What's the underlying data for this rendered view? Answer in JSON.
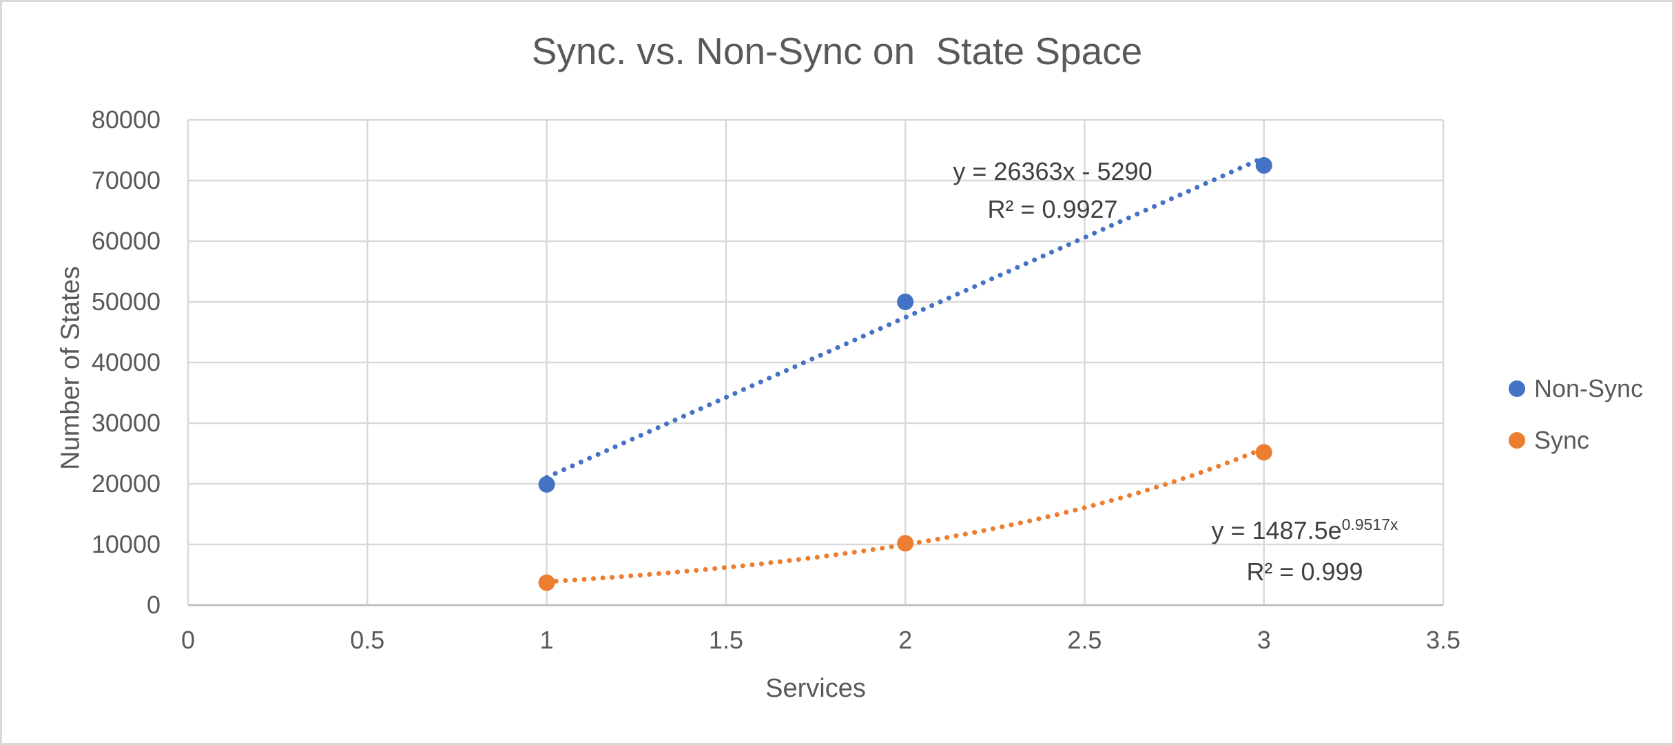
{
  "colors": {
    "accent_blue": "#4472C4",
    "accent_orange": "#ED7D31",
    "gridline": "#D9D9D9",
    "axis_line": "#BFBFBF",
    "text": "#595959",
    "equation_text": "#404040",
    "background": "#FFFFFF",
    "frame_border": "#D9D9D9"
  },
  "chart_data": {
    "type": "scatter",
    "title": "Sync. vs. Non-Sync on  State Space",
    "xlabel": "Services",
    "ylabel": "Number of States",
    "xlim": [
      0,
      3.5
    ],
    "ylim": [
      0,
      80000
    ],
    "xticks": [
      0,
      0.5,
      1,
      1.5,
      2,
      2.5,
      3,
      3.5
    ],
    "yticks": [
      0,
      10000,
      20000,
      30000,
      40000,
      50000,
      60000,
      70000,
      80000
    ],
    "grid": true,
    "legend_position": "right",
    "series": [
      {
        "name": "Non-Sync",
        "color": "#4472C4",
        "x": [
          1,
          2,
          3
        ],
        "y": [
          19900,
          50000,
          72500
        ],
        "trendline": {
          "type": "linear",
          "slope": 26363,
          "intercept": -5290,
          "style": "dotted",
          "label": "y = 26363x - 5290",
          "r2": 0.9927,
          "r2_label": "R² = 0.9927"
        }
      },
      {
        "name": "Sync",
        "color": "#ED7D31",
        "x": [
          1,
          2,
          3
        ],
        "y": [
          3700,
          10200,
          25200
        ],
        "trendline": {
          "type": "exponential",
          "coefficient": 1487.5,
          "exponent": 0.9517,
          "style": "dotted",
          "label_base": "y = 1487.5e",
          "label_exponent": "0.9517x",
          "r2": 0.999,
          "r2_label": "R² = 0.999"
        }
      }
    ]
  }
}
